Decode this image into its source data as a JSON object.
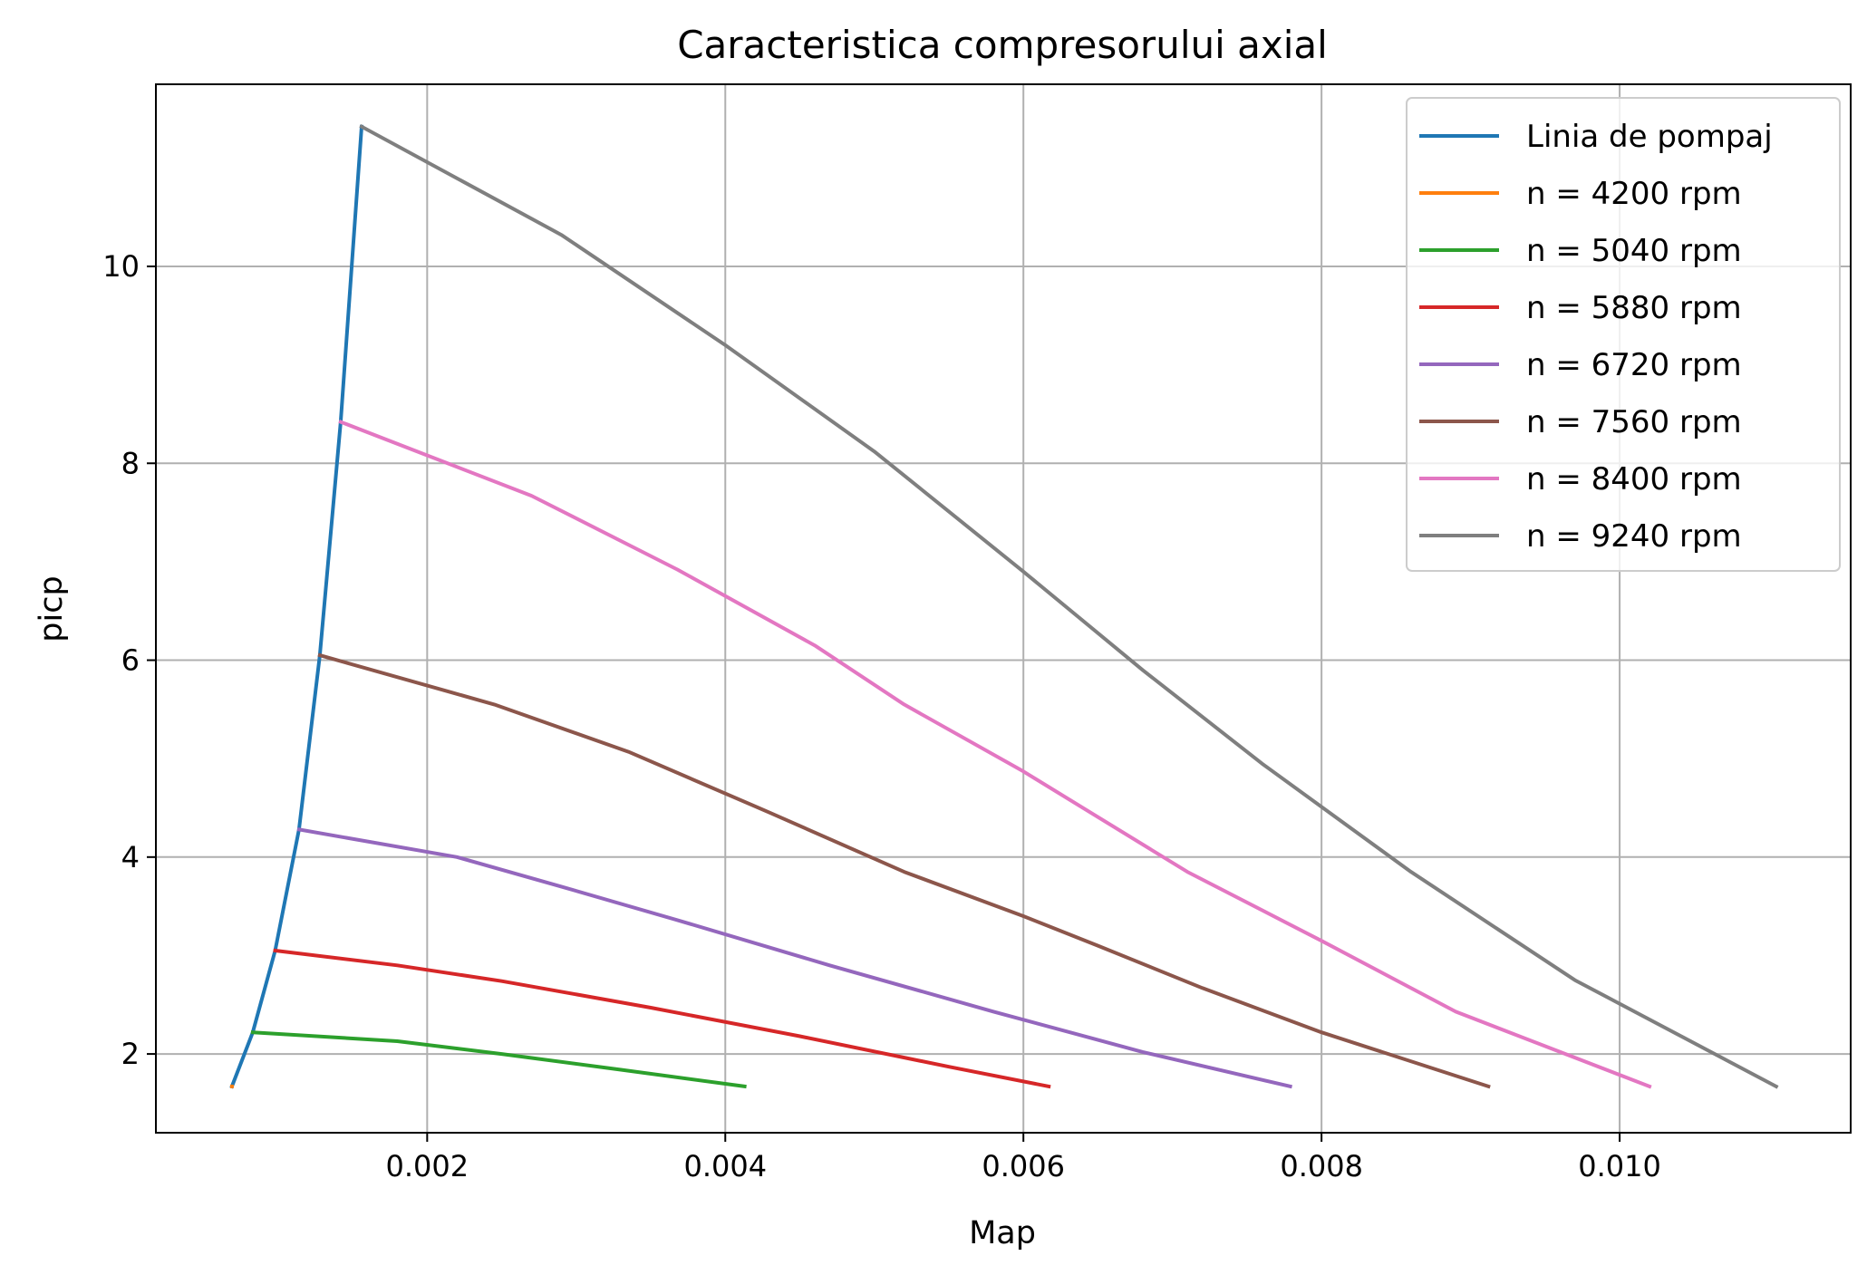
{
  "chart_data": {
    "type": "line",
    "title": "Caracteristica compresorului axial",
    "xlabel": "Map",
    "ylabel": "picp",
    "xlim": [
      0.00018,
      0.01155
    ],
    "ylim": [
      1.2,
      11.85
    ],
    "xticks": [
      0.002,
      0.004,
      0.006,
      0.008,
      0.01
    ],
    "xtick_labels": [
      "0.002",
      "0.004",
      "0.006",
      "0.008",
      "0.010"
    ],
    "yticks": [
      2,
      4,
      6,
      8,
      10
    ],
    "ytick_labels": [
      "2",
      "4",
      "6",
      "8",
      "10"
    ],
    "grid": true,
    "legend_position": "upper right",
    "series": [
      {
        "name": "Linia de pompaj",
        "color": "#1f77b4",
        "x": [
          0.00069,
          0.00083,
          0.00098,
          0.00114,
          0.00128,
          0.00142,
          0.00156
        ],
        "y": [
          1.67,
          2.22,
          3.05,
          4.28,
          6.05,
          8.42,
          11.42
        ]
      },
      {
        "name": "n = 4200 rpm",
        "color": "#ff7f0e",
        "x": [
          0.00069,
          0.00069
        ],
        "y": [
          1.67,
          1.67
        ]
      },
      {
        "name": "n = 5040 rpm",
        "color": "#2ca02c",
        "x": [
          0.00083,
          0.0018,
          0.0025,
          0.0033,
          0.00413
        ],
        "y": [
          2.22,
          2.13,
          2.0,
          1.84,
          1.67
        ]
      },
      {
        "name": "n = 5880 rpm",
        "color": "#d62728",
        "x": [
          0.00098,
          0.0018,
          0.0025,
          0.0035,
          0.0045,
          0.0055,
          0.00617
        ],
        "y": [
          3.05,
          2.9,
          2.74,
          2.47,
          2.18,
          1.87,
          1.67
        ]
      },
      {
        "name": "n = 6720 rpm",
        "color": "#9467bd",
        "x": [
          0.00114,
          0.0022,
          0.0029,
          0.0037,
          0.0047,
          0.0058,
          0.0068,
          0.00779
        ],
        "y": [
          4.28,
          4.0,
          3.7,
          3.35,
          2.9,
          2.43,
          2.02,
          1.67
        ]
      },
      {
        "name": "n = 7560 rpm",
        "color": "#8c564b",
        "x": [
          0.00128,
          0.00245,
          0.00335,
          0.0043,
          0.0052,
          0.006,
          0.0065,
          0.0072,
          0.008,
          0.00912
        ],
        "y": [
          6.05,
          5.55,
          5.07,
          4.45,
          3.85,
          3.4,
          3.1,
          2.67,
          2.22,
          1.67
        ]
      },
      {
        "name": "n = 8400 rpm",
        "color": "#e377c2",
        "x": [
          0.00142,
          0.0027,
          0.00368,
          0.0046,
          0.0052,
          0.006,
          0.0071,
          0.008,
          0.0089,
          0.0102
        ],
        "y": [
          8.42,
          7.67,
          6.92,
          6.15,
          5.55,
          4.87,
          3.85,
          3.15,
          2.43,
          1.67
        ]
      },
      {
        "name": "n = 9240 rpm",
        "color": "#7f7f7f",
        "x": [
          0.00156,
          0.0029,
          0.004,
          0.005,
          0.006,
          0.0068,
          0.0076,
          0.0086,
          0.0097,
          0.01105
        ],
        "y": [
          11.42,
          10.32,
          9.2,
          8.12,
          6.9,
          5.9,
          4.95,
          3.85,
          2.75,
          1.67
        ]
      }
    ]
  }
}
